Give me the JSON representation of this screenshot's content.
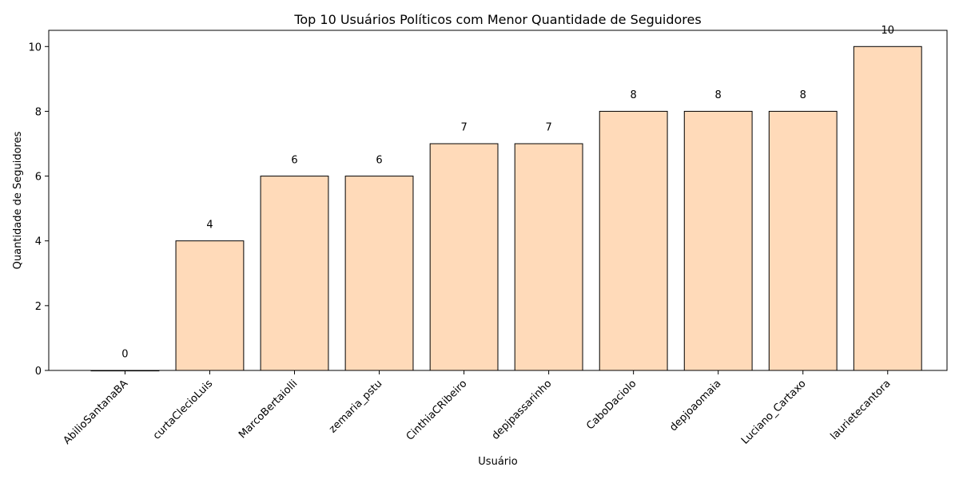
{
  "chart_data": {
    "type": "bar",
    "title": "Top 10 Usuários Políticos com Menor Quantidade de Seguidores",
    "xlabel": "Usuário",
    "ylabel": "Quantidade de Seguidores",
    "categories": [
      "AbilioSantanaBA",
      "curtaClecioLuis",
      "MarcoBertaiolli",
      "zemaria_pstu",
      "CinthiaCRibeiro",
      "depjpassarinho",
      "CaboDaciolo",
      "depjoaomaia",
      "Luciano_Cartaxo",
      "laurietecantora"
    ],
    "values": [
      0,
      4,
      6,
      6,
      7,
      7,
      8,
      8,
      8,
      10
    ],
    "data_labels": [
      "0",
      "4",
      "6",
      "6",
      "7",
      "7",
      "8",
      "8",
      "8",
      "10"
    ],
    "ylim": [
      0,
      10.5
    ],
    "yticks": [
      0,
      2,
      4,
      6,
      8,
      10
    ],
    "ytick_labels": [
      "0",
      "2",
      "4",
      "6",
      "8",
      "10"
    ],
    "grid": false,
    "legend": "none",
    "bar_color": "#FFDAB9",
    "bar_edge_color": "#000000"
  }
}
